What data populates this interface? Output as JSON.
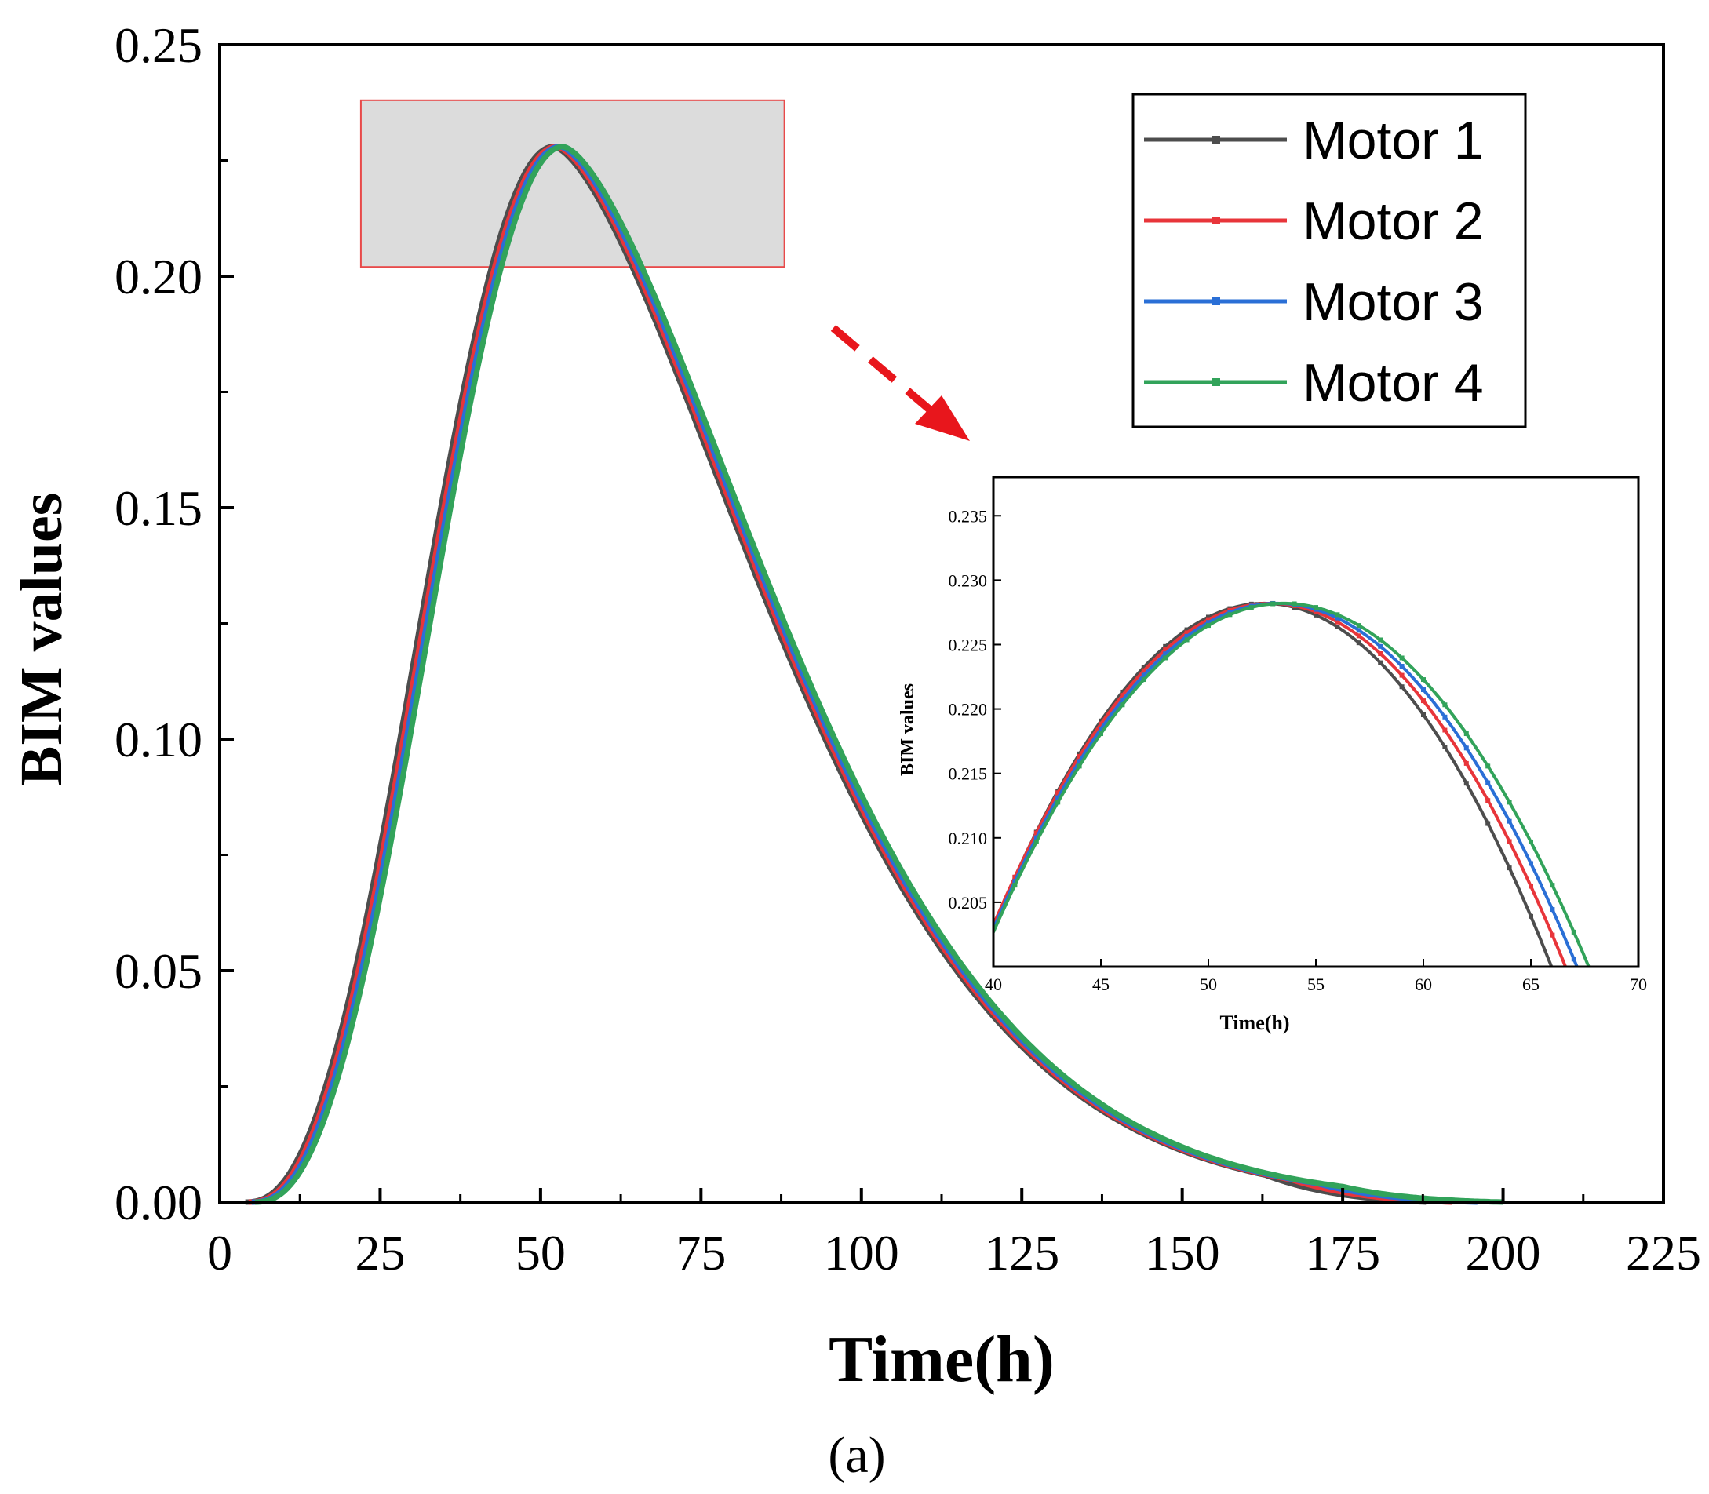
{
  "chart_data": [
    {
      "type": "line",
      "id": "main",
      "title": "",
      "xlabel": "Time(h)",
      "ylabel": "BIM values",
      "xlim": [
        0,
        225
      ],
      "ylim": [
        0,
        0.25
      ],
      "xticks": [
        0,
        25,
        50,
        75,
        100,
        125,
        150,
        175,
        200,
        225
      ],
      "xtick_labels": [
        "0",
        "25",
        "50",
        "75",
        "100",
        "125",
        "150",
        "175",
        "200",
        "225"
      ],
      "yticks": [
        0,
        0.05,
        0.1,
        0.15,
        0.2,
        0.25
      ],
      "ytick_labels": [
        "0.00",
        "0.05",
        "0.10",
        "0.15",
        "0.20",
        "0.25"
      ],
      "grid": false,
      "legend_position": "top-right",
      "series": [
        {
          "name": "Motor 1",
          "color": "#4d4d4d",
          "peak_time": 52.0,
          "peak_value": 0.228,
          "start": 4.0,
          "end": 188
        },
        {
          "name": "Motor 2",
          "color": "#e8353a",
          "peak_time": 52.5,
          "peak_value": 0.228,
          "start": 4.5,
          "end": 192
        },
        {
          "name": "Motor 3",
          "color": "#2a6fd6",
          "peak_time": 53.0,
          "peak_value": 0.228,
          "start": 5.0,
          "end": 196
        },
        {
          "name": "Motor 4",
          "color": "#32a35a",
          "peak_time": 53.5,
          "peak_value": 0.228,
          "start": 5.5,
          "end": 200
        }
      ],
      "highlight_region": {
        "x": [
          22,
          88
        ],
        "y": [
          0.202,
          0.238
        ]
      },
      "panel_label": "(a)"
    },
    {
      "type": "line",
      "id": "inset",
      "title": "",
      "xlabel": "Time(h)",
      "ylabel": "BIM values",
      "xlim": [
        40,
        70
      ],
      "ylim": [
        0.2,
        0.238
      ],
      "xticks": [
        40,
        45,
        50,
        55,
        60,
        65,
        70
      ],
      "xtick_labels": [
        "40",
        "45",
        "50",
        "55",
        "60",
        "65",
        "70"
      ],
      "yticks": [
        0.205,
        0.21,
        0.215,
        0.22,
        0.225,
        0.23,
        0.235
      ],
      "ytick_labels": [
        "0.205",
        "0.210",
        "0.215",
        "0.220",
        "0.225",
        "0.230",
        "0.235"
      ],
      "grid": false,
      "series": [
        {
          "name": "Motor 1",
          "color": "#4d4d4d",
          "peak_time": 52.6,
          "peak_value": 0.2282,
          "curvature": 0.000158
        },
        {
          "name": "Motor 2",
          "color": "#e8353a",
          "peak_time": 52.9,
          "peak_value": 0.2282,
          "curvature": 0.00015
        },
        {
          "name": "Motor 3",
          "color": "#2a6fd6",
          "peak_time": 53.2,
          "peak_value": 0.2282,
          "curvature": 0.000145
        },
        {
          "name": "Motor 4",
          "color": "#32a35a",
          "peak_time": 53.5,
          "peak_value": 0.2282,
          "curvature": 0.00014
        }
      ]
    }
  ]
}
